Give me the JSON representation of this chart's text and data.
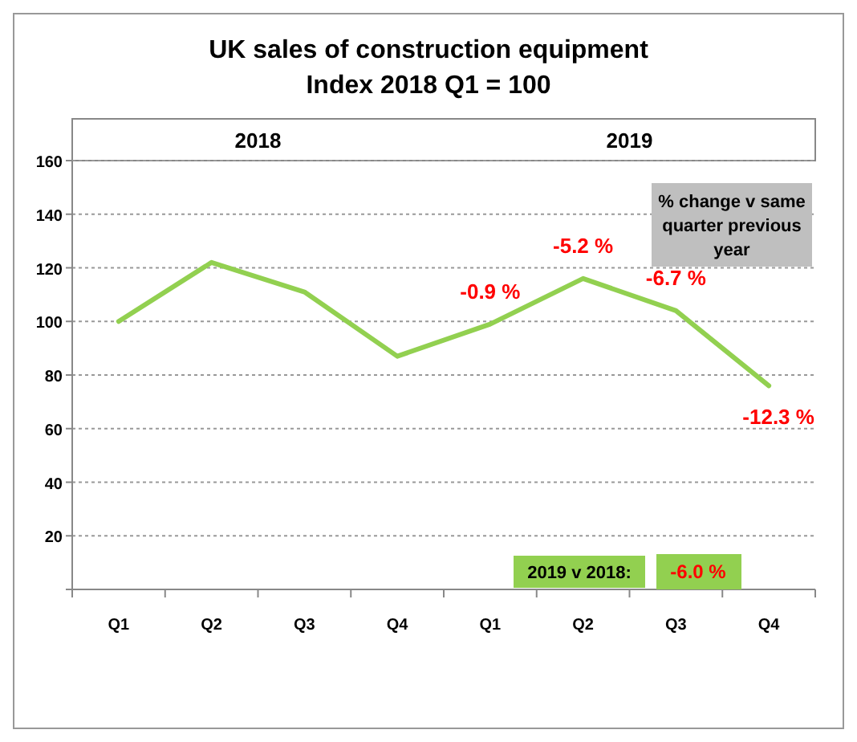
{
  "chart_data": {
    "type": "line",
    "title": "UK sales of construction equipment",
    "subtitle": "Index 2018 Q1 = 100",
    "categories": [
      "Q1",
      "Q2",
      "Q3",
      "Q4",
      "Q1",
      "Q2",
      "Q3",
      "Q4"
    ],
    "series": [
      {
        "color": "#92d050",
        "values": [
          100,
          122,
          111,
          87,
          99,
          116,
          104,
          76
        ]
      }
    ],
    "ylim": [
      0,
      160
    ],
    "yticks": [
      {
        "value": 0,
        "label": null
      },
      20,
      40,
      60,
      80,
      100,
      120,
      140,
      160
    ],
    "grid": "y",
    "marker": "none",
    "line_style": "solid",
    "annotations": [
      "2018",
      "2019",
      "% change v same quarter previous year",
      "2019 v 2018:",
      "-6.0 %",
      "-0.9 %",
      "-5.2 %",
      "-6.7 %",
      "-12.3 %"
    ]
  }
}
